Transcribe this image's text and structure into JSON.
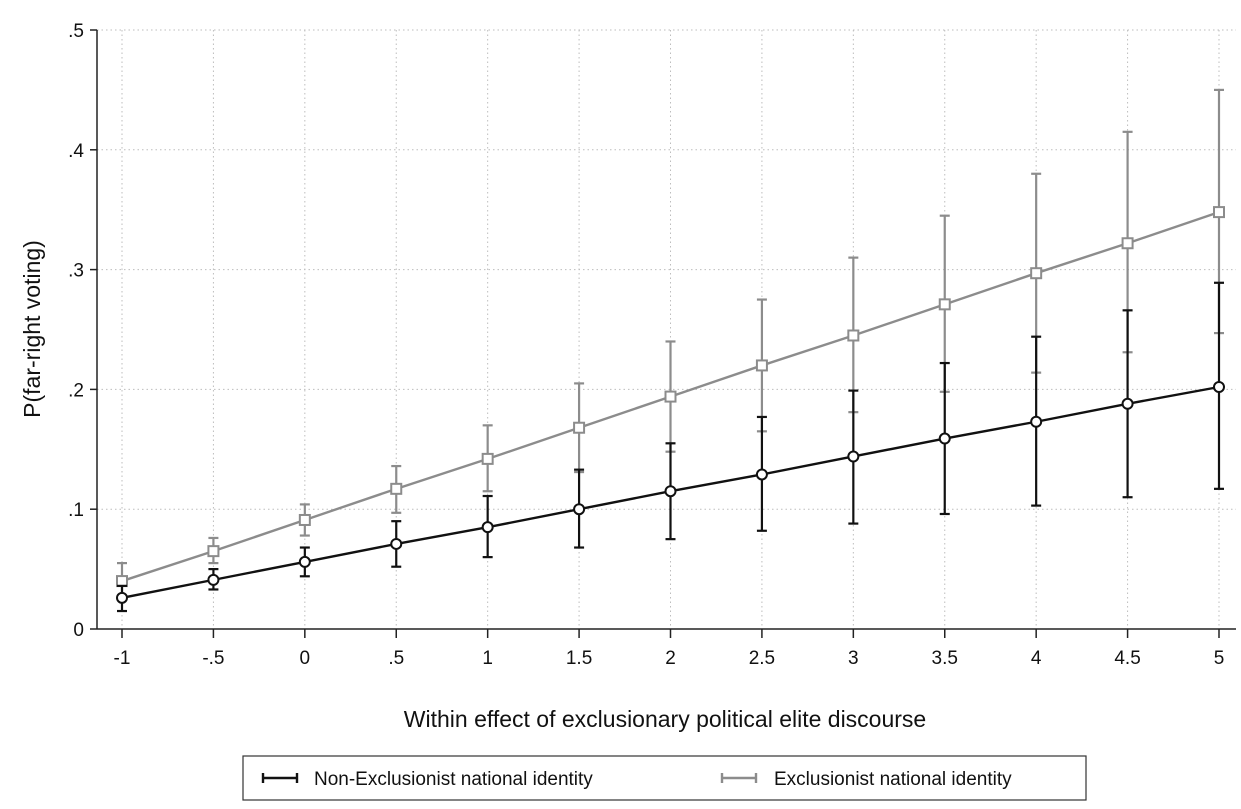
{
  "chart_data": {
    "type": "line",
    "title": "",
    "xlabel": "Within effect of exclusionary political elite discourse",
    "ylabel": "P(far-right voting)",
    "x": [
      -1,
      -0.5,
      0,
      0.5,
      1,
      1.5,
      2,
      2.5,
      3,
      3.5,
      4,
      4.5,
      5
    ],
    "x_tick_labels": [
      "-1",
      "-.5",
      "0",
      ".5",
      "1",
      "1.5",
      "2",
      "2.5",
      "3",
      "3.5",
      "4",
      "4.5",
      "5"
    ],
    "y_ticks": [
      0,
      0.1,
      0.2,
      0.3,
      0.4,
      0.5
    ],
    "y_tick_labels": [
      "0",
      ".1",
      ".2",
      ".3",
      ".4",
      ".5"
    ],
    "xlim": [
      -1,
      5
    ],
    "ylim": [
      0,
      0.5
    ],
    "grid": true,
    "legend_position": "bottom",
    "series": [
      {
        "name": "Non-Exclusionist national identity",
        "color": "#111111",
        "marker": "circle",
        "values": [
          0.026,
          0.041,
          0.056,
          0.071,
          0.085,
          0.1,
          0.115,
          0.129,
          0.144,
          0.159,
          0.173,
          0.188,
          0.202
        ],
        "ci_low": [
          0.015,
          0.033,
          0.044,
          0.052,
          0.06,
          0.068,
          0.075,
          0.082,
          0.088,
          0.096,
          0.103,
          0.11,
          0.117
        ],
        "ci_high": [
          0.036,
          0.05,
          0.068,
          0.09,
          0.111,
          0.133,
          0.155,
          0.177,
          0.199,
          0.222,
          0.244,
          0.266,
          0.289
        ]
      },
      {
        "name": "Exclusionist national identity",
        "color": "#8c8c8c",
        "marker": "square",
        "values": [
          0.04,
          0.065,
          0.091,
          0.117,
          0.142,
          0.168,
          0.194,
          0.22,
          0.245,
          0.271,
          0.297,
          0.322,
          0.348
        ],
        "ci_low": [
          0.025,
          0.055,
          0.078,
          0.097,
          0.115,
          0.131,
          0.148,
          0.165,
          0.181,
          0.198,
          0.214,
          0.231,
          0.247
        ],
        "ci_high": [
          0.055,
          0.076,
          0.104,
          0.136,
          0.17,
          0.205,
          0.24,
          0.275,
          0.31,
          0.345,
          0.38,
          0.415,
          0.45
        ]
      }
    ]
  }
}
